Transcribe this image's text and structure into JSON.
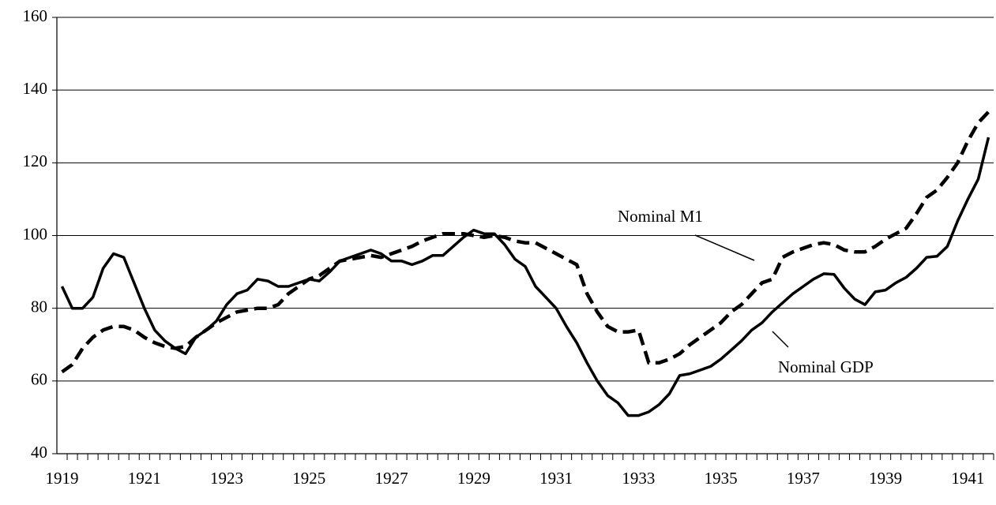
{
  "chart_data": {
    "type": "line",
    "categories": [
      "1919",
      null,
      null,
      null,
      null,
      null,
      null,
      null,
      "1921",
      null,
      null,
      null,
      null,
      null,
      null,
      null,
      "1923",
      null,
      null,
      null,
      null,
      null,
      null,
      null,
      "1925",
      null,
      null,
      null,
      null,
      null,
      null,
      null,
      "1927",
      null,
      null,
      null,
      null,
      null,
      null,
      null,
      "1929",
      null,
      null,
      null,
      null,
      null,
      null,
      null,
      "1931",
      null,
      null,
      null,
      null,
      null,
      null,
      null,
      "1933",
      null,
      null,
      null,
      null,
      null,
      null,
      null,
      "1935",
      null,
      null,
      null,
      null,
      null,
      null,
      null,
      "1937",
      null,
      null,
      null,
      null,
      null,
      null,
      null,
      "1939",
      null,
      null,
      null,
      null,
      null,
      null,
      null,
      "1941",
      null,
      null
    ],
    "series": [
      {
        "name": "Nominal GDP",
        "color": "#000000",
        "dashed": false,
        "values": [
          86,
          80,
          80,
          83,
          91,
          95,
          94,
          87,
          80,
          74,
          71,
          69,
          67.5,
          72,
          74,
          76.5,
          81,
          84,
          85,
          88,
          87.5,
          86,
          86,
          87,
          88,
          87.5,
          90,
          93,
          94,
          95,
          96,
          95,
          93,
          93,
          92,
          93,
          94.5,
          94.5,
          97,
          99.5,
          101.5,
          100.5,
          100.5,
          97.5,
          93.5,
          91.5,
          86,
          83,
          80,
          75,
          70.5,
          65,
          60,
          56,
          54,
          50.5,
          50.5,
          51.5,
          53.5,
          56.5,
          61.5,
          62,
          63,
          64,
          66,
          68.5,
          71,
          74,
          76,
          79,
          81.5,
          84,
          86,
          88,
          89.5,
          89.3,
          85.5,
          82.5,
          81,
          84.5,
          85,
          87,
          88.5,
          91,
          94,
          94.3,
          97,
          104,
          110,
          115.5,
          127
        ]
      },
      {
        "name": "Nominal M1",
        "color": "#000000",
        "dashed": true,
        "values": [
          62.5,
          64.5,
          69,
          72,
          74,
          75,
          75,
          74,
          72,
          70.5,
          69.5,
          69,
          69.5,
          72,
          74,
          76,
          77.5,
          79,
          79.5,
          80,
          80,
          81,
          84,
          86,
          88,
          89,
          91,
          93,
          93.5,
          94,
          94.5,
          94,
          95,
          96,
          97,
          98.5,
          99.5,
          100.5,
          100.5,
          100.5,
          100,
          99.5,
          100,
          99.5,
          98.5,
          98,
          98,
          96.5,
          95,
          93.5,
          92,
          84,
          79,
          75,
          73.5,
          73.5,
          74,
          65,
          65,
          66,
          67.5,
          70,
          72,
          74,
          76,
          79,
          81,
          84,
          87,
          88,
          94,
          95.5,
          96.5,
          97.5,
          98,
          97.5,
          96,
          95.5,
          95.5,
          97,
          99,
          100.5,
          102,
          106,
          110.5,
          112.5,
          116,
          120,
          126,
          131,
          134
        ]
      }
    ],
    "ylim": [
      40,
      160
    ],
    "yticks": [
      40,
      60,
      80,
      100,
      120,
      140,
      160
    ],
    "grid": true
  }
}
